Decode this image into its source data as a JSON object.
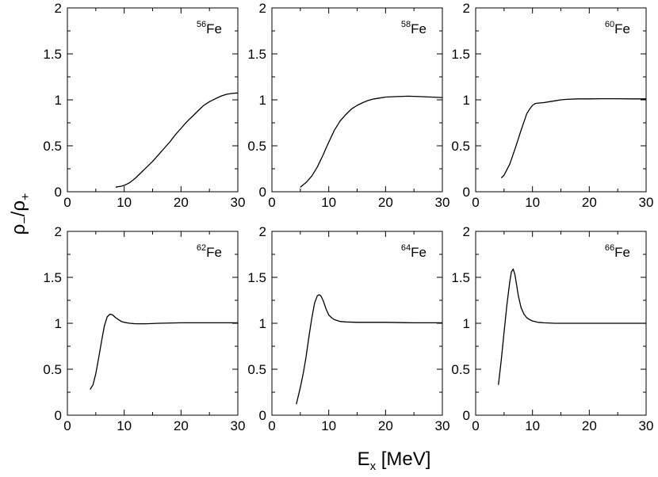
{
  "figure": {
    "ylabel": {
      "main": "ρ",
      "sub1": "−",
      "mid": "/ρ",
      "sub2": "+"
    },
    "xlabel": {
      "main": "E",
      "sub": "x",
      "tail": " [MeV]"
    }
  },
  "chart_data": [
    {
      "type": "line",
      "label": {
        "mass": "56",
        "element": "Fe"
      },
      "xlim": [
        0,
        30
      ],
      "ylim": [
        0,
        2
      ],
      "xticks": [
        "0",
        "10",
        "20",
        "30"
      ],
      "yticks": [
        "0",
        "0.5",
        "1",
        "1.5",
        "2"
      ],
      "xlabel": "E_x [MeV]",
      "ylabel": "ρ_/ρ_+",
      "series": [
        {
          "name": "56Fe",
          "x": [
            8.5,
            9.5,
            10,
            11,
            12,
            13,
            14,
            15,
            16,
            17,
            18,
            19,
            20,
            21,
            22,
            23,
            24,
            25,
            26,
            27,
            28,
            29,
            30
          ],
          "y": [
            0.05,
            0.06,
            0.07,
            0.1,
            0.15,
            0.21,
            0.27,
            0.33,
            0.4,
            0.47,
            0.54,
            0.62,
            0.69,
            0.76,
            0.82,
            0.88,
            0.94,
            0.98,
            1.01,
            1.04,
            1.06,
            1.07,
            1.075
          ]
        }
      ]
    },
    {
      "type": "line",
      "label": {
        "mass": "58",
        "element": "Fe"
      },
      "xlim": [
        0,
        30
      ],
      "ylim": [
        0,
        2
      ],
      "xticks": [
        "0",
        "10",
        "20",
        "30"
      ],
      "yticks": [
        "0",
        "0.5",
        "1",
        "1.5",
        "2"
      ],
      "xlabel": "E_x [MeV]",
      "ylabel": "ρ_/ρ_+",
      "series": [
        {
          "name": "58Fe",
          "x": [
            5,
            6,
            7,
            8,
            9,
            10,
            11,
            12,
            13,
            14,
            15,
            16,
            17,
            18,
            19,
            20,
            22,
            24,
            26,
            28,
            30
          ],
          "y": [
            0.05,
            0.1,
            0.17,
            0.27,
            0.4,
            0.54,
            0.67,
            0.77,
            0.84,
            0.9,
            0.94,
            0.97,
            0.995,
            1.01,
            1.02,
            1.03,
            1.035,
            1.04,
            1.035,
            1.03,
            1.025
          ]
        }
      ]
    },
    {
      "type": "line",
      "label": {
        "mass": "60",
        "element": "Fe"
      },
      "xlim": [
        0,
        30
      ],
      "ylim": [
        0,
        2
      ],
      "xticks": [
        "0",
        "10",
        "20",
        "30"
      ],
      "yticks": [
        "0",
        "0.5",
        "1",
        "1.5",
        "2"
      ],
      "xlabel": "E_x [MeV]",
      "ylabel": "ρ_/ρ_+",
      "series": [
        {
          "name": "60Fe",
          "x": [
            4.5,
            5,
            6,
            7,
            8,
            9,
            9.5,
            10,
            10.5,
            11,
            12,
            13,
            14,
            15,
            16,
            18,
            20,
            22,
            25,
            28,
            30
          ],
          "y": [
            0.15,
            0.18,
            0.3,
            0.48,
            0.67,
            0.85,
            0.9,
            0.94,
            0.96,
            0.965,
            0.97,
            0.98,
            0.99,
            1.0,
            1.005,
            1.01,
            1.01,
            1.012,
            1.012,
            1.01,
            1.01
          ]
        }
      ]
    },
    {
      "type": "line",
      "label": {
        "mass": "62",
        "element": "Fe"
      },
      "xlim": [
        0,
        30
      ],
      "ylim": [
        0,
        2
      ],
      "xticks": [
        "0",
        "10",
        "20",
        "30"
      ],
      "yticks": [
        "0",
        "0.5",
        "1",
        "1.5",
        "2"
      ],
      "xlabel": "E_x [MeV]",
      "ylabel": "ρ_/ρ_+",
      "series": [
        {
          "name": "62Fe",
          "x": [
            4,
            4.5,
            5,
            5.5,
            6,
            6.5,
            7,
            7.5,
            8,
            8.5,
            9,
            9.5,
            10,
            11,
            12,
            14,
            16,
            20,
            25,
            30
          ],
          "y": [
            0.28,
            0.33,
            0.45,
            0.62,
            0.8,
            0.97,
            1.07,
            1.1,
            1.09,
            1.06,
            1.04,
            1.02,
            1.01,
            1.0,
            0.995,
            0.995,
            1.0,
            1.005,
            1.005,
            1.005
          ]
        }
      ]
    },
    {
      "type": "line",
      "label": {
        "mass": "64",
        "element": "Fe"
      },
      "xlim": [
        0,
        30
      ],
      "ylim": [
        0,
        2
      ],
      "xticks": [
        "0",
        "10",
        "20",
        "30"
      ],
      "yticks": [
        "0",
        "0.5",
        "1",
        "1.5",
        "2"
      ],
      "xlabel": "E_x [MeV]",
      "ylabel": "ρ_/ρ_+",
      "series": [
        {
          "name": "64Fe",
          "x": [
            4.3,
            5,
            5.5,
            6,
            6.5,
            7,
            7.5,
            8,
            8.3,
            8.6,
            9,
            9.5,
            10,
            10.5,
            11,
            12,
            13,
            15,
            20,
            25,
            30
          ],
          "y": [
            0.12,
            0.3,
            0.45,
            0.63,
            0.85,
            1.05,
            1.22,
            1.3,
            1.31,
            1.3,
            1.25,
            1.16,
            1.09,
            1.06,
            1.04,
            1.02,
            1.015,
            1.01,
            1.01,
            1.005,
            1.005
          ]
        }
      ]
    },
    {
      "type": "line",
      "label": {
        "mass": "66",
        "element": "Fe"
      },
      "xlim": [
        0,
        30
      ],
      "ylim": [
        0,
        2
      ],
      "xticks": [
        "0",
        "10",
        "20",
        "30"
      ],
      "yticks": [
        "0",
        "0.5",
        "1",
        "1.5",
        "2"
      ],
      "xlabel": "E_x [MeV]",
      "ylabel": "ρ_/ρ_+",
      "series": [
        {
          "name": "66Fe",
          "x": [
            4,
            4.5,
            5,
            5.5,
            6,
            6.3,
            6.6,
            6.9,
            7.2,
            7.5,
            8,
            8.5,
            9,
            9.5,
            10,
            11,
            12,
            14,
            18,
            24,
            30
          ],
          "y": [
            0.33,
            0.6,
            0.9,
            1.2,
            1.45,
            1.56,
            1.59,
            1.53,
            1.42,
            1.3,
            1.17,
            1.1,
            1.06,
            1.04,
            1.025,
            1.01,
            1.005,
            1.0,
            1.0,
            1.0,
            1.0
          ]
        }
      ]
    }
  ]
}
